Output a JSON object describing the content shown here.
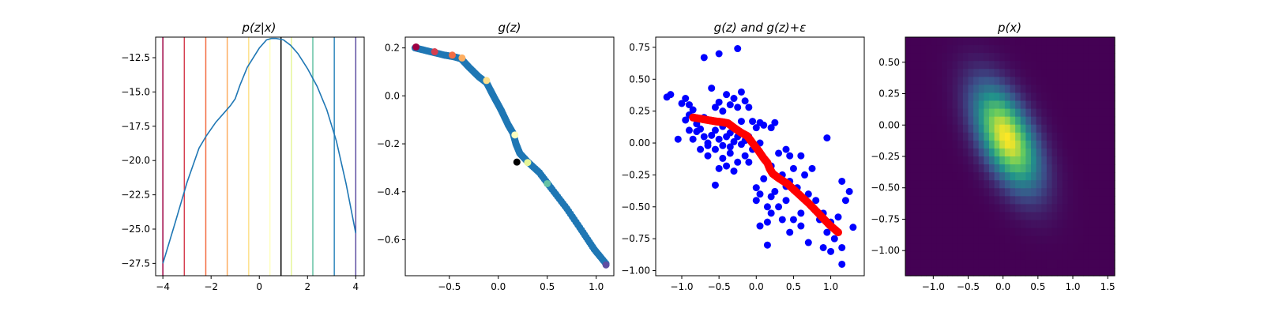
{
  "figure": {
    "background": "#ffffff"
  },
  "chart_data": [
    {
      "type": "line",
      "title": "p(z|x)",
      "xlim": [
        -4.3,
        4.35
      ],
      "ylim": [
        -28.4,
        -11.0
      ],
      "xticks": [
        -4,
        -2,
        0,
        2,
        4
      ],
      "yticks": [
        -27.5,
        -25.0,
        -22.5,
        -20.0,
        -17.5,
        -15.0,
        -12.5
      ],
      "xtick_labels": [
        "−4",
        "−2",
        "0",
        "2",
        "4"
      ],
      "ytick_labels": [
        "−27.5",
        "−25.0",
        "−22.5",
        "−20.0",
        "−17.5",
        "−15.0",
        "−12.5"
      ],
      "series": [
        {
          "color": "#1f77b4",
          "x": [
            -4.0,
            -3.5,
            -3.0,
            -2.5,
            -2.2,
            -1.8,
            -1.5,
            -1.2,
            -1.0,
            -0.8,
            -0.5,
            0.0,
            0.3,
            0.5,
            0.7,
            1.0,
            1.3,
            1.6,
            2.0,
            2.4,
            2.8,
            3.2,
            3.6,
            4.0
          ],
          "y": [
            -27.5,
            -24.6,
            -21.6,
            -19.1,
            -18.2,
            -17.2,
            -16.6,
            -16.0,
            -15.5,
            -14.5,
            -13.2,
            -11.8,
            -11.2,
            -11.1,
            -11.1,
            -11.2,
            -11.6,
            -12.2,
            -13.3,
            -14.6,
            -16.3,
            -18.6,
            -21.7,
            -25.3
          ]
        }
      ],
      "vlines": [
        {
          "x": -4.0,
          "color": "#9e0142"
        },
        {
          "x": -3.11,
          "color": "#d53e4f"
        },
        {
          "x": -2.22,
          "color": "#f46d43"
        },
        {
          "x": -1.33,
          "color": "#fdae61"
        },
        {
          "x": -0.44,
          "color": "#fee08b"
        },
        {
          "x": 0.44,
          "color": "#ffffbf"
        },
        {
          "x": 0.9,
          "color": "#000000"
        },
        {
          "x": 1.33,
          "color": "#e6f598"
        },
        {
          "x": 2.22,
          "color": "#66c2a5"
        },
        {
          "x": 3.11,
          "color": "#3288bd"
        },
        {
          "x": 4.0,
          "color": "#5e4fa2"
        }
      ]
    },
    {
      "type": "scatter",
      "title": "g(z)",
      "xlim": [
        -0.95,
        1.18
      ],
      "ylim": [
        -0.75,
        0.245
      ],
      "xticks": [
        -0.5,
        0.0,
        0.5,
        1.0
      ],
      "yticks": [
        -0.6,
        -0.4,
        -0.2,
        0.0,
        0.2
      ],
      "xtick_labels": [
        "−0.5",
        "0.0",
        "0.5",
        "1.0"
      ],
      "ytick_labels": [
        "−0.6",
        "−0.4",
        "−0.2",
        "0.0",
        "0.2"
      ],
      "curve": {
        "color": "#1f77b4",
        "x": [
          -0.85,
          -0.7,
          -0.55,
          -0.45,
          -0.38,
          -0.3,
          -0.2,
          -0.12,
          -0.05,
          0.03,
          0.1,
          0.15,
          0.18,
          0.22,
          0.3,
          0.42,
          0.55,
          0.7,
          0.85,
          0.98,
          1.1
        ],
        "y": [
          0.2,
          0.185,
          0.17,
          0.163,
          0.155,
          0.12,
          0.08,
          0.055,
          0.0,
          -0.06,
          -0.12,
          -0.155,
          -0.2,
          -0.24,
          -0.275,
          -0.32,
          -0.39,
          -0.47,
          -0.56,
          -0.64,
          -0.7
        ]
      },
      "points": [
        {
          "x": -0.84,
          "y": 0.204,
          "color": "#9e0142"
        },
        {
          "x": -0.65,
          "y": 0.184,
          "color": "#d53e4f"
        },
        {
          "x": -0.47,
          "y": 0.17,
          "color": "#f46d43"
        },
        {
          "x": -0.37,
          "y": 0.158,
          "color": "#fdae61"
        },
        {
          "x": -0.12,
          "y": 0.064,
          "color": "#fee08b"
        },
        {
          "x": 0.17,
          "y": -0.163,
          "color": "#ffffbf"
        },
        {
          "x": 0.19,
          "y": -0.276,
          "color": "#000000"
        },
        {
          "x": 0.3,
          "y": -0.278,
          "color": "#e6f598"
        },
        {
          "x": 0.5,
          "y": -0.366,
          "color": "#66c2a5"
        },
        {
          "x": 1.1,
          "y": -0.705,
          "color": "#5e4fa2"
        }
      ]
    },
    {
      "type": "scatter",
      "title": "g(z) and g(z)+ε",
      "xlim": [
        -1.35,
        1.45
      ],
      "ylim": [
        -1.04,
        0.83
      ],
      "xticks": [
        -1.0,
        -0.5,
        0.0,
        0.5,
        1.0
      ],
      "yticks": [
        -1.0,
        -0.75,
        -0.5,
        -0.25,
        0.0,
        0.25,
        0.5,
        0.75
      ],
      "xtick_labels": [
        "−1.0",
        "−0.5",
        "0.0",
        "0.5",
        "1.0"
      ],
      "ytick_labels": [
        "−1.00",
        "−0.75",
        "−0.50",
        "−0.25",
        "0.00",
        "0.25",
        "0.50",
        "0.75"
      ],
      "noisy_points_color": "#0000ff",
      "noisy_points": [
        [
          -1.2,
          0.36
        ],
        [
          -1.15,
          0.38
        ],
        [
          -1.0,
          0.31
        ],
        [
          -0.95,
          0.35
        ],
        [
          -0.9,
          0.3
        ],
        [
          -0.85,
          0.26
        ],
        [
          -0.95,
          0.18
        ],
        [
          -0.9,
          0.1
        ],
        [
          -1.05,
          0.03
        ],
        [
          -0.85,
          0.03
        ],
        [
          -0.8,
          0.09
        ],
        [
          -0.75,
          0.11
        ],
        [
          -0.7,
          0.05
        ],
        [
          -0.65,
          0.0
        ],
        [
          -0.6,
          0.06
        ],
        [
          -0.55,
          0.1
        ],
        [
          -0.5,
          0.03
        ],
        [
          -0.45,
          -0.02
        ],
        [
          -0.4,
          0.05
        ],
        [
          -0.35,
          0.08
        ],
        [
          -0.3,
          0.01
        ],
        [
          -0.25,
          0.05
        ],
        [
          -0.2,
          -0.01
        ],
        [
          -0.15,
          0.02
        ],
        [
          -0.55,
          0.28
        ],
        [
          -0.5,
          0.32
        ],
        [
          -0.45,
          0.25
        ],
        [
          -0.4,
          0.38
        ],
        [
          -0.35,
          0.3
        ],
        [
          -0.3,
          0.35
        ],
        [
          -0.25,
          0.28
        ],
        [
          -0.2,
          0.4
        ],
        [
          -0.15,
          0.33
        ],
        [
          -0.1,
          0.28
        ],
        [
          -0.6,
          0.43
        ],
        [
          -0.7,
          0.67
        ],
        [
          -0.5,
          0.7
        ],
        [
          -0.25,
          0.74
        ],
        [
          -0.05,
          0.17
        ],
        [
          0.0,
          0.12
        ],
        [
          0.05,
          0.16
        ],
        [
          0.1,
          0.14
        ],
        [
          0.2,
          0.12
        ],
        [
          0.25,
          0.16
        ],
        [
          -0.65,
          -0.1
        ],
        [
          -0.55,
          -0.05
        ],
        [
          -0.45,
          -0.12
        ],
        [
          -0.35,
          -0.08
        ],
        [
          -0.25,
          -0.15
        ],
        [
          -0.15,
          -0.1
        ],
        [
          -0.05,
          -0.05
        ],
        [
          -0.5,
          -0.2
        ],
        [
          -0.3,
          -0.22
        ],
        [
          -0.55,
          -0.33
        ],
        [
          -0.4,
          -0.18
        ],
        [
          -0.65,
          -0.02
        ],
        [
          -0.75,
          -0.05
        ],
        [
          0.0,
          -0.35
        ],
        [
          0.05,
          -0.4
        ],
        [
          0.1,
          -0.28
        ],
        [
          0.15,
          -0.5
        ],
        [
          0.2,
          -0.42
        ],
        [
          0.25,
          -0.38
        ],
        [
          0.05,
          -0.65
        ],
        [
          0.2,
          -0.55
        ],
        [
          0.15,
          -0.62
        ],
        [
          0.3,
          -0.5
        ],
        [
          0.35,
          -0.6
        ],
        [
          0.4,
          -0.45
        ],
        [
          0.45,
          -0.3
        ],
        [
          0.5,
          -0.2
        ],
        [
          0.55,
          -0.35
        ],
        [
          0.6,
          -0.1
        ],
        [
          0.65,
          -0.25
        ],
        [
          0.7,
          -0.4
        ],
        [
          0.75,
          -0.5
        ],
        [
          0.8,
          -0.45
        ],
        [
          0.85,
          -0.6
        ],
        [
          0.9,
          -0.55
        ],
        [
          0.95,
          -0.7
        ],
        [
          1.0,
          -0.62
        ],
        [
          1.05,
          -0.75
        ],
        [
          1.1,
          -0.58
        ],
        [
          1.15,
          -0.3
        ],
        [
          1.2,
          -0.45
        ],
        [
          1.25,
          -0.38
        ],
        [
          1.3,
          -0.66
        ],
        [
          1.15,
          -0.82
        ],
        [
          1.0,
          -0.85
        ],
        [
          0.95,
          0.04
        ],
        [
          0.3,
          -0.08
        ],
        [
          0.4,
          -0.05
        ],
        [
          0.45,
          -0.1
        ],
        [
          0.2,
          -0.18
        ],
        [
          0.35,
          -0.25
        ],
        [
          0.5,
          -0.6
        ],
        [
          0.45,
          -0.7
        ],
        [
          0.6,
          -0.65
        ],
        [
          0.7,
          -0.78
        ],
        [
          0.9,
          -0.82
        ],
        [
          1.15,
          -0.95
        ],
        [
          0.15,
          -0.8
        ],
        [
          0.0,
          -0.45
        ],
        [
          -0.1,
          -0.15
        ],
        [
          0.6,
          -0.55
        ],
        [
          0.75,
          -0.2
        ],
        [
          0.4,
          -0.34
        ],
        [
          0.05,
          0.0
        ],
        [
          -0.2,
          0.17
        ],
        [
          -0.7,
          0.2
        ],
        [
          -0.9,
          0.22
        ],
        [
          -0.8,
          0.15
        ],
        [
          -0.45,
          0.13
        ],
        [
          -0.35,
          -0.03
        ],
        [
          -0.1,
          0.05
        ]
      ],
      "curve_color": "#ff0000",
      "curve": {
        "x": [
          -0.85,
          -0.7,
          -0.55,
          -0.45,
          -0.38,
          -0.3,
          -0.2,
          -0.12,
          -0.05,
          0.03,
          0.1,
          0.15,
          0.18,
          0.22,
          0.3,
          0.42,
          0.55,
          0.7,
          0.85,
          0.98,
          1.1
        ],
        "y": [
          0.2,
          0.185,
          0.17,
          0.163,
          0.155,
          0.12,
          0.08,
          0.055,
          0.0,
          -0.06,
          -0.12,
          -0.155,
          -0.2,
          -0.24,
          -0.275,
          -0.32,
          -0.39,
          -0.47,
          -0.56,
          -0.64,
          -0.7
        ]
      }
    },
    {
      "type": "heatmap",
      "title": "p(x)",
      "xlim": [
        -1.4,
        1.6
      ],
      "ylim": [
        -1.2,
        0.7
      ],
      "xticks": [
        -1.0,
        -0.5,
        0.0,
        0.5,
        1.0,
        1.5
      ],
      "yticks": [
        -1.0,
        -0.75,
        -0.5,
        -0.25,
        0.0,
        0.25,
        0.5
      ],
      "xtick_labels": [
        "−1.0",
        "−0.5",
        "0.0",
        "0.5",
        "1.0",
        "1.5"
      ],
      "ytick_labels": [
        "−1.00",
        "−0.75",
        "−0.50",
        "−0.25",
        "0.00",
        "0.25",
        "0.50"
      ],
      "grid": [
        40,
        30
      ],
      "colormap": "viridis",
      "density_center": [
        0.05,
        -0.1
      ],
      "density_sigma": [
        0.32,
        0.28
      ],
      "density_correlation": -0.55
    }
  ]
}
